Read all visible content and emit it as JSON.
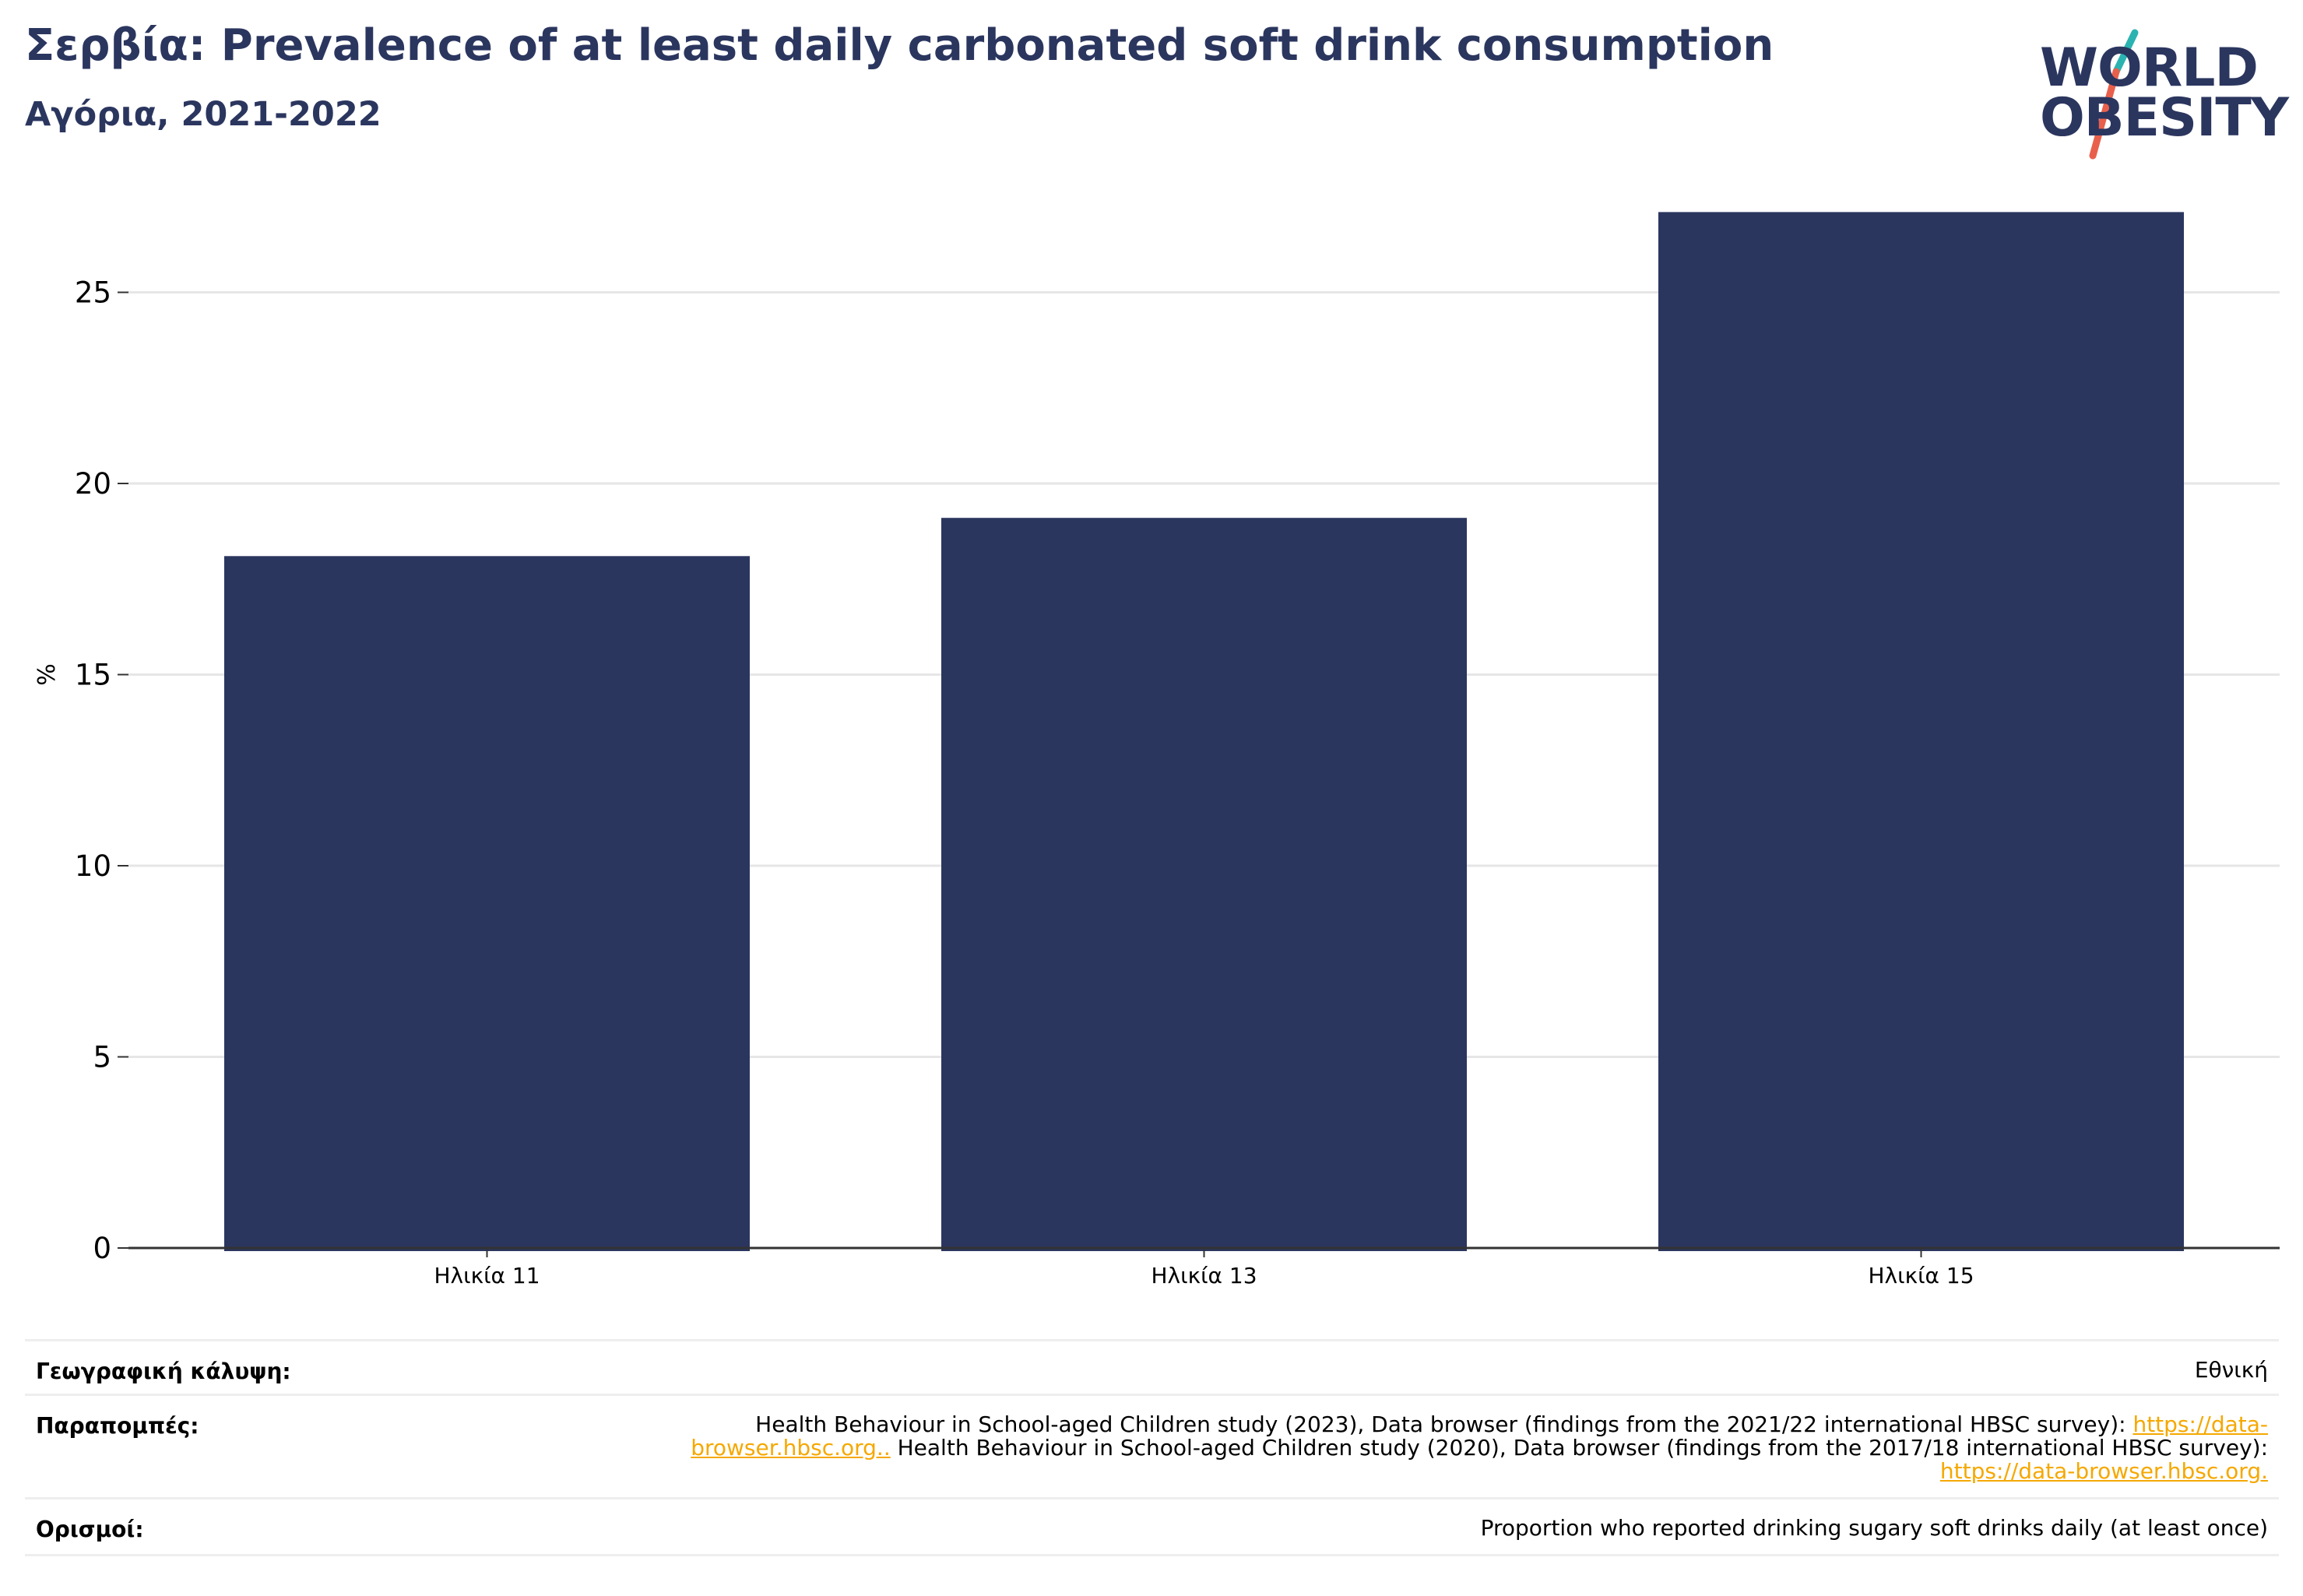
{
  "header": {
    "title": "Σερβία: Prevalence of at least daily carbonated soft drink consumption",
    "subtitle": "Αγόρια, 2021-2022"
  },
  "logo": {
    "line1": "WORLD",
    "line2": "OBESITY",
    "colors": {
      "text": "#2b365f",
      "slash_top": "#2bb3b1",
      "slash_bottom": "#e8604c"
    }
  },
  "chart_data": {
    "type": "bar",
    "categories": [
      "Ηλικία 11",
      "Ηλικία 13",
      "Ηλικία 15"
    ],
    "values": [
      18.1,
      19.1,
      27.1
    ],
    "ylabel": "%",
    "ylim": [
      0,
      27.5
    ],
    "yticks": [
      0,
      5,
      10,
      15,
      20,
      25
    ],
    "grid": true,
    "colors": {
      "bar": "#2b365f",
      "grid": "#e6e6e6",
      "axis": "#333333"
    }
  },
  "footer": {
    "coverage": {
      "label": "Γεωγραφική κάλυψη:",
      "value": "Εθνική"
    },
    "references": {
      "label": "Παραπομπές:",
      "text1": "Health Behaviour in School-aged Children study (2023), Data browser (findings from the 2021/22 international HBSC survey): ",
      "link1": "https://data-browser.hbsc.org..",
      "text2": " Health Behaviour in School-aged Children study (2020), Data browser (findings from the 2017/18 international HBSC survey): ",
      "link2": "https://data-browser.hbsc.org."
    },
    "definitions": {
      "label": "Ορισμοί:",
      "value": "Proportion who reported drinking sugary soft drinks daily (at least once)"
    }
  }
}
